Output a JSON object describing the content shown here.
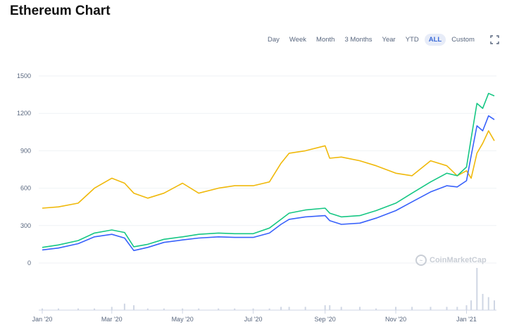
{
  "header": {
    "title": "Ethereum Chart"
  },
  "toolbar": {
    "ranges": [
      "Day",
      "Week",
      "Month",
      "3 Months",
      "Year",
      "YTD",
      "ALL",
      "Custom"
    ],
    "active": "ALL",
    "fullscreen_icon": "fullscreen-icon",
    "more_icon": "more-options-icon"
  },
  "watermark": {
    "text": "CoinMarketCap",
    "logo_icon": "coinmarketcap-logo-icon"
  },
  "chart_data": {
    "type": "line",
    "y_ticks": [
      0,
      300,
      600,
      900,
      1200,
      1500
    ],
    "ylim": [
      0,
      1500
    ],
    "x_ticks": [
      {
        "label": "Jan '20",
        "date": "2020-01-01"
      },
      {
        "label": "Mar '20",
        "date": "2020-03-01"
      },
      {
        "label": "May '20",
        "date": "2020-05-01"
      },
      {
        "label": "Jul '20",
        "date": "2020-07-01"
      },
      {
        "label": "Sep '20",
        "date": "2020-09-01"
      },
      {
        "label": "Nov '20",
        "date": "2020-11-01"
      },
      {
        "label": "Jan '21",
        "date": "2021-01-01"
      }
    ],
    "xlim": [
      "2020-01-01",
      "2021-01-25"
    ],
    "x": [
      "2020-01-01",
      "2020-01-15",
      "2020-02-01",
      "2020-02-15",
      "2020-03-01",
      "2020-03-12",
      "2020-03-20",
      "2020-04-01",
      "2020-04-15",
      "2020-05-01",
      "2020-05-15",
      "2020-06-01",
      "2020-06-15",
      "2020-07-01",
      "2020-07-15",
      "2020-07-25",
      "2020-08-01",
      "2020-08-15",
      "2020-09-01",
      "2020-09-05",
      "2020-09-15",
      "2020-10-01",
      "2020-10-15",
      "2020-11-01",
      "2020-11-15",
      "2020-12-01",
      "2020-12-15",
      "2020-12-24",
      "2021-01-01",
      "2021-01-05",
      "2021-01-10",
      "2021-01-15",
      "2021-01-20",
      "2021-01-25"
    ],
    "series": [
      {
        "color": "#f0b90b",
        "values": [
          440,
          450,
          480,
          600,
          680,
          640,
          560,
          520,
          560,
          640,
          560,
          600,
          620,
          620,
          650,
          800,
          880,
          900,
          940,
          840,
          850,
          820,
          780,
          720,
          700,
          820,
          780,
          700,
          740,
          680,
          880,
          960,
          1060,
          980
        ]
      },
      {
        "color": "#16c784",
        "values": [
          125,
          145,
          180,
          240,
          265,
          245,
          130,
          150,
          190,
          210,
          230,
          240,
          235,
          235,
          280,
          350,
          400,
          425,
          440,
          400,
          370,
          380,
          420,
          480,
          560,
          650,
          720,
          700,
          770,
          1000,
          1280,
          1240,
          1360,
          1340
        ]
      },
      {
        "color": "#3861fb",
        "values": [
          105,
          120,
          155,
          210,
          230,
          200,
          100,
          125,
          165,
          185,
          200,
          210,
          205,
          205,
          240,
          310,
          350,
          370,
          380,
          340,
          310,
          320,
          360,
          420,
          490,
          570,
          620,
          610,
          660,
          860,
          1100,
          1060,
          1180,
          1150
        ]
      }
    ],
    "volume": {
      "color": "#cfd6e4",
      "values": [
        1,
        1,
        1,
        1,
        2,
        4,
        3,
        1,
        1,
        1,
        1,
        1,
        1,
        1,
        1,
        2,
        2,
        2,
        3,
        3,
        2,
        2,
        1,
        2,
        2,
        2,
        2,
        2,
        3,
        6,
        26,
        10,
        8,
        6
      ]
    }
  }
}
